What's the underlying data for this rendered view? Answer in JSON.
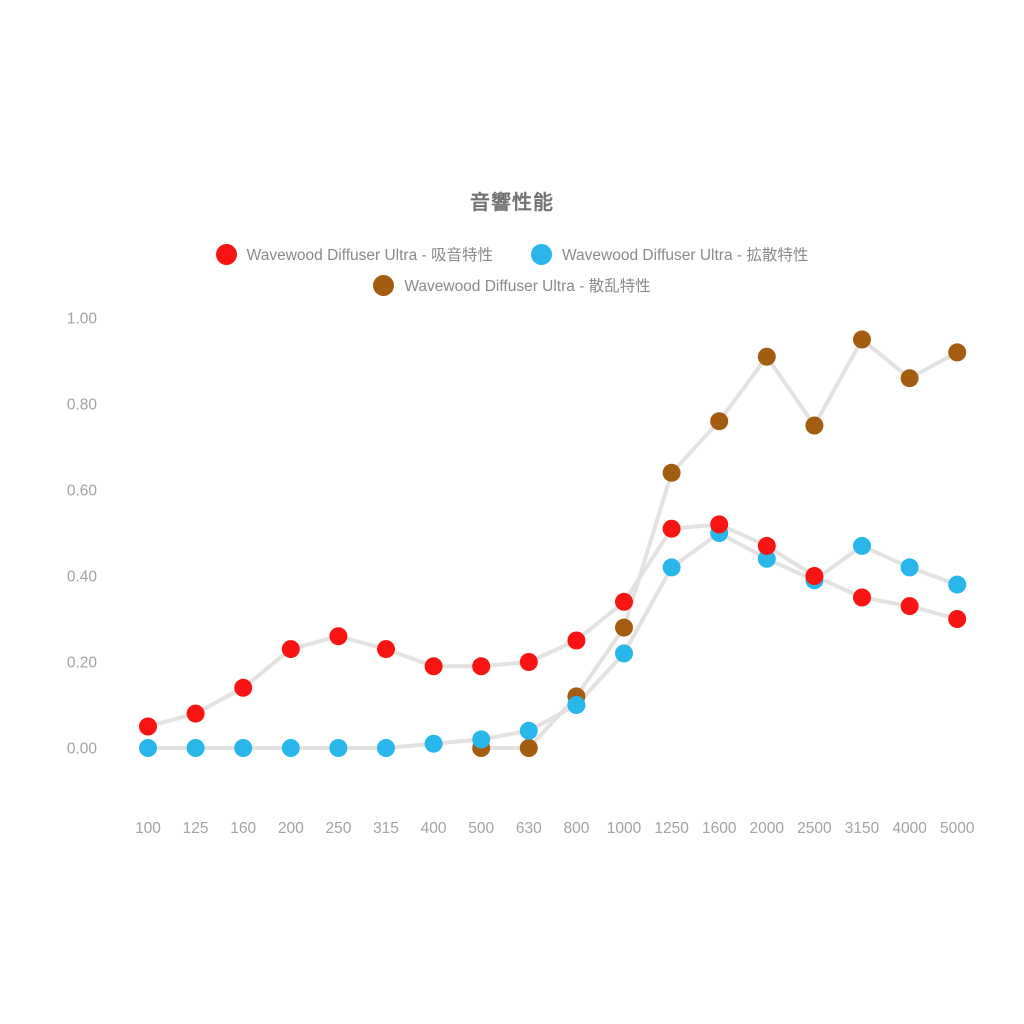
{
  "title": "音響性能",
  "legend": {
    "items": [
      {
        "label": "Wavewood Diffuser Ultra - 吸音特性",
        "color": "#f91414"
      },
      {
        "label": "Wavewood Diffuser Ultra - 拡散特性",
        "color": "#29b6ea"
      },
      {
        "label": "Wavewood Diffuser Ultra - 散乱特性",
        "color": "#a45c11"
      }
    ]
  },
  "chart_data": {
    "type": "line",
    "title": "音響性能",
    "xlabel": "",
    "ylabel": "",
    "categories": [
      "100",
      "125",
      "160",
      "200",
      "250",
      "315",
      "400",
      "500",
      "630",
      "800",
      "1000",
      "1250",
      "1600",
      "2000",
      "2500",
      "3150",
      "4000",
      "5000"
    ],
    "series": [
      {
        "name": "Wavewood Diffuser Ultra - 吸音特性",
        "color": "#f91414",
        "values": [
          0.05,
          0.08,
          0.14,
          0.23,
          0.26,
          0.23,
          0.19,
          0.19,
          0.2,
          0.25,
          0.34,
          0.51,
          0.52,
          0.47,
          0.4,
          0.35,
          0.33,
          0.3
        ]
      },
      {
        "name": "Wavewood Diffuser Ultra - 拡散特性",
        "color": "#29b6ea",
        "values": [
          0.0,
          0.0,
          0.0,
          0.0,
          0.0,
          0.0,
          0.01,
          0.02,
          0.04,
          0.1,
          0.22,
          0.42,
          0.5,
          0.44,
          0.39,
          0.47,
          0.42,
          0.38
        ]
      },
      {
        "name": "Wavewood Diffuser Ultra - 散乱特性",
        "color": "#a45c11",
        "values": [
          null,
          null,
          null,
          null,
          null,
          null,
          null,
          0.0,
          0.0,
          0.12,
          0.28,
          0.64,
          0.76,
          0.91,
          0.75,
          0.95,
          0.86,
          0.92
        ]
      }
    ],
    "yticks": [
      "1.00",
      "0.80",
      "0.60",
      "0.40",
      "0.20",
      "0.00"
    ],
    "ylim": [
      0,
      1
    ],
    "grid": false,
    "axis_lines": false,
    "connector_line_color": "#e4e2e0",
    "legend_position": "top"
  }
}
